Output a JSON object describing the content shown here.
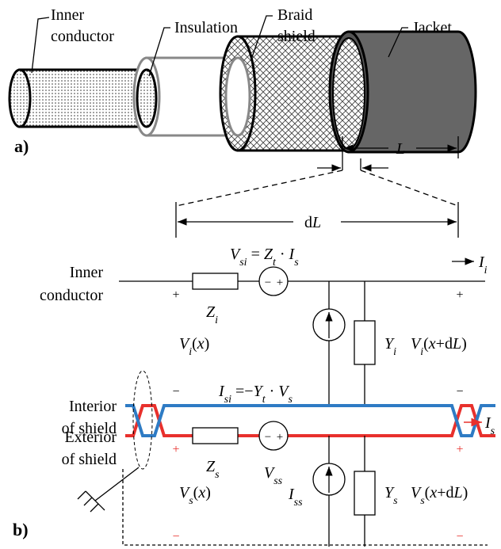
{
  "panel_a": {
    "label": "a)",
    "inner_conductor": [
      "Inner",
      "conductor"
    ],
    "insulation": "Insulation",
    "braid_shield": [
      "Braid",
      "shield"
    ],
    "jacket": "Jacket",
    "length": "L"
  },
  "panel_b": {
    "label": "b)",
    "segment_length": [
      "d",
      "L"
    ],
    "inner_conductor": [
      "Inner",
      "conductor"
    ],
    "interior_of_shield": [
      "Interior",
      "of shield"
    ],
    "exterior_of_shield": [
      "Exterior",
      "of shield"
    ],
    "v_si": [
      "V",
      "si",
      " = ",
      "Z",
      "t",
      " · ",
      "I",
      "s"
    ],
    "i_i": [
      "I",
      "i"
    ],
    "z_i": [
      "Z",
      "i"
    ],
    "y_i": [
      "Y",
      "i"
    ],
    "v_i_left": [
      "V",
      "i",
      "(",
      "x",
      ")"
    ],
    "v_i_right": [
      "V",
      "i",
      "(",
      "x",
      "+d",
      "L",
      ")"
    ],
    "i_si": [
      "I",
      "si",
      " =−",
      "Y",
      "t",
      " · ",
      "V",
      "s"
    ],
    "i_s": [
      "I",
      "s"
    ],
    "z_s": [
      "Z",
      "s"
    ],
    "v_ss": [
      "V",
      "ss"
    ],
    "i_ss": [
      "I",
      "ss"
    ],
    "y_s": [
      "Y",
      "s"
    ],
    "v_s_left": [
      "V",
      "s",
      "(",
      "x",
      ")"
    ],
    "v_s_right": [
      "V",
      "s",
      "(",
      "x",
      "+d",
      "L",
      ")"
    ],
    "signs": [
      "+",
      "+",
      "−",
      "−",
      "+",
      "+",
      "−",
      "−"
    ],
    "source_signs": [
      [
        "−",
        "+"
      ],
      [
        "−",
        "+"
      ]
    ]
  }
}
